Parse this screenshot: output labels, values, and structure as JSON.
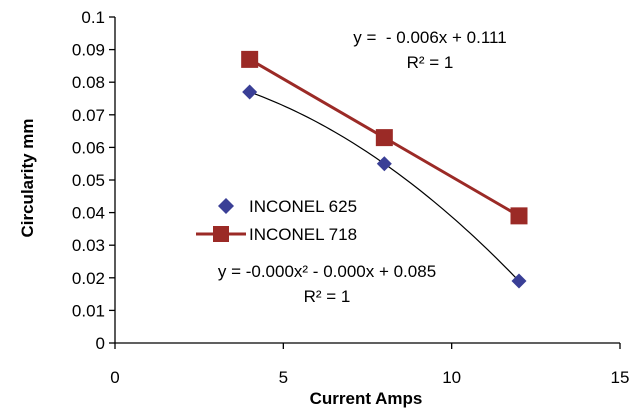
{
  "chart_data": {
    "type": "scatter",
    "title": "",
    "xlabel": "Current Amps",
    "ylabel": "Circularity mm",
    "xlim": [
      0,
      15
    ],
    "ylim": [
      0,
      0.1
    ],
    "x_ticks": [
      "0",
      "5",
      "10",
      "15"
    ],
    "y_ticks": [
      "0",
      "0.01",
      "0.02",
      "0.03",
      "0.04",
      "0.05",
      "0.06",
      "0.07",
      "0.08",
      "0.09",
      "0.1"
    ],
    "grid": false,
    "legend_position": "center-left",
    "series": [
      {
        "name": "INCONEL 625",
        "marker": "diamond",
        "color": "#3a3f96",
        "trendline": "polynomial",
        "trendline_color": "#000000",
        "x": [
          4,
          8,
          12
        ],
        "y": [
          0.077,
          0.055,
          0.019
        ]
      },
      {
        "name": "INCONEL 718",
        "marker": "square",
        "color": "#9b2a26",
        "trendline": "linear",
        "trendline_color": "#9b2a26",
        "x": [
          4,
          8,
          12
        ],
        "y": [
          0.087,
          0.063,
          0.039
        ]
      }
    ],
    "annotations": [
      {
        "line1": "y =  - 0.006x + 0.111",
        "line2": "R² = 1"
      },
      {
        "line1": "y = -0.000x² - 0.000x + 0.085",
        "line2": "R² = 1"
      }
    ]
  }
}
